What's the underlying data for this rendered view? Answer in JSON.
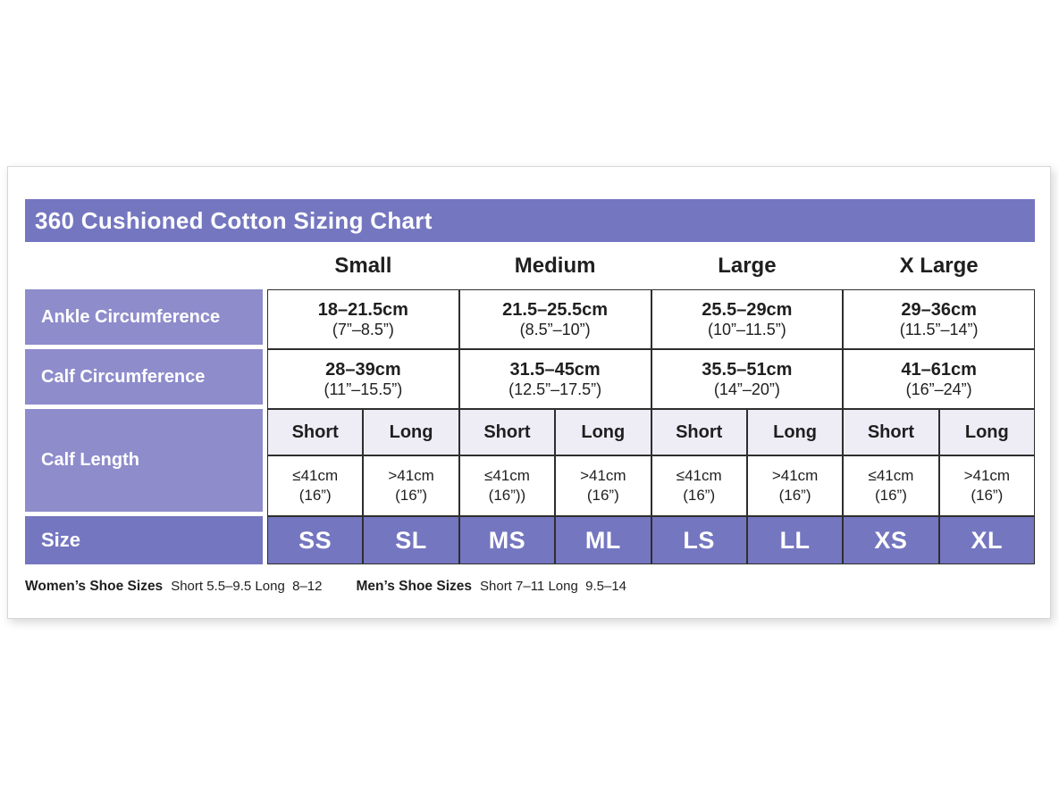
{
  "colors": {
    "header_purple": "#7476C0",
    "label_purple": "#8E8CCB",
    "subheader_lavender": "#EEEDF6",
    "border_dark": "#2e2e2e",
    "text_dark": "#1f1f1f"
  },
  "chart_data": {
    "type": "table",
    "title": "360 Cushioned Cotton Sizing Chart",
    "size_groups": [
      "Small",
      "Medium",
      "Large",
      "X Large"
    ],
    "rows": {
      "ankle": {
        "label": "Ankle Circumference",
        "values": [
          {
            "cm": "18–21.5cm",
            "inches": "(7”–8.5”)"
          },
          {
            "cm": "21.5–25.5cm",
            "inches": "(8.5”–10”)"
          },
          {
            "cm": "25.5–29cm",
            "inches": "(10”–11.5”)"
          },
          {
            "cm": "29–36cm",
            "inches": "(11.5”–14”)"
          }
        ]
      },
      "calf_circumference": {
        "label": "Calf Circumference",
        "values": [
          {
            "cm": "28–39cm",
            "inches": "(11”–15.5”)"
          },
          {
            "cm": "31.5–45cm",
            "inches": "(12.5”–17.5”)"
          },
          {
            "cm": "35.5–51cm",
            "inches": "(14”–20”)"
          },
          {
            "cm": "41–61cm",
            "inches": "(16”–24”)"
          }
        ]
      },
      "calf_length": {
        "label": "Calf Length",
        "subheaders": [
          "Short",
          "Long",
          "Short",
          "Long",
          "Short",
          "Long",
          "Short",
          "Long"
        ],
        "values": [
          {
            "cm": "≤41cm",
            "inches": "(16”)"
          },
          {
            "cm": ">41cm",
            "inches": "(16”)"
          },
          {
            "cm": "≤41cm",
            "inches": "(16”))"
          },
          {
            "cm": ">41cm",
            "inches": "(16”)"
          },
          {
            "cm": "≤41cm",
            "inches": "(16”)"
          },
          {
            "cm": ">41cm",
            "inches": "(16”)"
          },
          {
            "cm": "≤41cm",
            "inches": "(16”)"
          },
          {
            "cm": ">41cm",
            "inches": "(16”)"
          }
        ]
      },
      "size": {
        "label": "Size",
        "values": [
          "SS",
          "SL",
          "MS",
          "ML",
          "LS",
          "LL",
          "XS",
          "XL"
        ]
      }
    },
    "footer": {
      "womens_label": "Women’s Shoe Sizes",
      "womens_value": "Short 5.5–9.5 Long  8–12",
      "mens_label": "Men’s Shoe Sizes",
      "mens_value": "Short 7–11 Long  9.5–14"
    }
  }
}
